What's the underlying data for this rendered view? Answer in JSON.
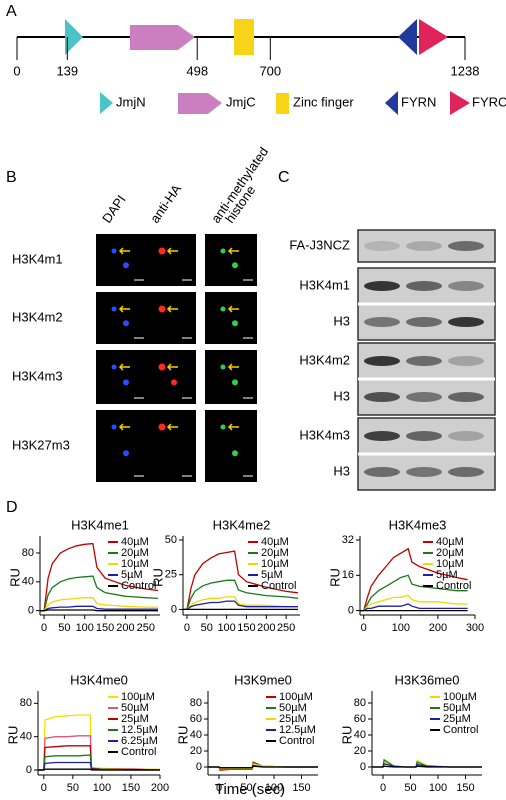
{
  "panel_a": {
    "label": "A",
    "positions": [
      0,
      139,
      498,
      700,
      1238
    ],
    "legend": [
      "JmjN",
      "JmjC",
      "Zinc finger",
      "FYRN",
      "FYRC"
    ]
  },
  "panel_b": {
    "label": "B",
    "columns": [
      [
        "DAPI"
      ],
      [
        "anti-HA"
      ],
      [
        "anti-methylated",
        "histone"
      ]
    ],
    "rows": [
      "H3K4m1",
      "H3K4m2",
      "H3K4m3",
      "H3K27m3"
    ]
  },
  "panel_c": {
    "label": "C",
    "blots": [
      "FA-J3NCZ",
      "H3K4m1",
      "H3",
      "H3K4m2",
      "H3",
      "H3K4m3",
      "H3"
    ]
  },
  "panel_d": {
    "label": "D",
    "x_label": "Time (sec)"
  },
  "chart_data": [
    {
      "type": "line",
      "title": "H3K4me1",
      "y_label": "RU",
      "xlim": [
        -10,
        285
      ],
      "xticks": [
        0,
        50,
        100,
        150,
        200,
        250
      ],
      "ylim": [
        -6,
        98
      ],
      "yticks": [
        0,
        40,
        80
      ],
      "x": [
        -10,
        0,
        10,
        20,
        40,
        60,
        80,
        100,
        120,
        130,
        150,
        200,
        250,
        280
      ],
      "series": [
        {
          "name": "40µM",
          "color": "#c00000",
          "values": [
            0,
            0,
            45,
            65,
            80,
            86,
            90,
            92,
            93,
            60,
            45,
            35,
            30,
            28
          ]
        },
        {
          "name": "20µM",
          "color": "#1a7a1a",
          "values": [
            0,
            0,
            22,
            32,
            40,
            44,
            46,
            47,
            48,
            32,
            25,
            20,
            18,
            17
          ]
        },
        {
          "name": "10µM",
          "color": "#f0d800",
          "values": [
            0,
            0,
            8,
            12,
            15,
            16,
            17,
            18,
            18,
            10,
            8,
            6,
            5,
            5
          ]
        },
        {
          "name": "5µM",
          "color": "#1f1fa0",
          "values": [
            0,
            0,
            3,
            4,
            5,
            5,
            6,
            6,
            6,
            3,
            2,
            2,
            2,
            2
          ]
        },
        {
          "name": "Control",
          "color": "#000000",
          "values": [
            0,
            0,
            1,
            1,
            1,
            1,
            1,
            1,
            1,
            0,
            0,
            0,
            0,
            0
          ]
        }
      ]
    },
    {
      "type": "line",
      "title": "H3K4me2",
      "y_label": "RU",
      "xlim": [
        -10,
        285
      ],
      "xticks": [
        0,
        50,
        100,
        150,
        200,
        250
      ],
      "ylim": [
        -4,
        50
      ],
      "yticks": [
        0,
        25,
        50
      ],
      "x": [
        -10,
        0,
        10,
        20,
        40,
        60,
        80,
        100,
        120,
        130,
        150,
        200,
        250,
        280
      ],
      "series": [
        {
          "name": "40µM",
          "color": "#c00000",
          "values": [
            0,
            0,
            15,
            25,
            33,
            37,
            40,
            41,
            42,
            25,
            20,
            16,
            13,
            12
          ]
        },
        {
          "name": "20µM",
          "color": "#1a7a1a",
          "values": [
            0,
            0,
            8,
            13,
            17,
            19,
            20,
            21,
            21,
            14,
            12,
            10,
            9,
            8
          ]
        },
        {
          "name": "10µM",
          "color": "#f0d800",
          "values": [
            0,
            0,
            3,
            5,
            7,
            8,
            8,
            9,
            9,
            4,
            3,
            3,
            2,
            2
          ]
        },
        {
          "name": "5µM",
          "color": "#1f1fa0",
          "values": [
            0,
            0,
            2,
            3,
            4,
            5,
            5,
            6,
            6,
            3,
            2,
            2,
            2,
            2
          ]
        },
        {
          "name": "Control",
          "color": "#000000",
          "values": [
            0,
            0,
            0,
            0,
            0,
            0,
            0,
            0,
            0,
            0,
            0,
            0,
            0,
            0
          ]
        }
      ]
    },
    {
      "type": "line",
      "title": "H3K4me3",
      "y_label": "RU",
      "xlim": [
        -10,
        300
      ],
      "xticks": [
        0,
        100,
        200,
        300
      ],
      "ylim": [
        -2,
        32
      ],
      "yticks": [
        0,
        16,
        32
      ],
      "x": [
        -10,
        0,
        10,
        20,
        40,
        60,
        80,
        100,
        120,
        130,
        150,
        200,
        250,
        280
      ],
      "series": [
        {
          "name": "40µM",
          "color": "#c00000",
          "values": [
            0,
            0,
            6,
            11,
            16,
            20,
            24,
            26,
            28,
            22,
            20,
            17,
            15,
            14
          ]
        },
        {
          "name": "20µM",
          "color": "#1a7a1a",
          "values": [
            0,
            0,
            3,
            6,
            9,
            11,
            13,
            15,
            16,
            12,
            11,
            10,
            9,
            9
          ]
        },
        {
          "name": "10µM",
          "color": "#f0d800",
          "values": [
            0,
            0,
            2,
            3,
            4,
            5,
            6,
            6,
            7,
            5,
            4,
            4,
            3,
            3
          ]
        },
        {
          "name": "5µM",
          "color": "#1f1fa0",
          "values": [
            0,
            0,
            1,
            1,
            2,
            2,
            2,
            2,
            3,
            2,
            1,
            1,
            1,
            1
          ]
        },
        {
          "name": "Control",
          "color": "#000000",
          "values": [
            0,
            0,
            0,
            0,
            0,
            0,
            0,
            0,
            0,
            0,
            0,
            0,
            0,
            0
          ]
        }
      ]
    },
    {
      "type": "line",
      "title": "H3K4me0",
      "y_label": "RU",
      "xlim": [
        -10,
        200
      ],
      "xticks": [
        0,
        50,
        100,
        150,
        200
      ],
      "ylim": [
        -6,
        90
      ],
      "yticks": [
        0,
        40,
        80
      ],
      "x": [
        -10,
        0,
        2,
        20,
        40,
        60,
        80,
        82,
        100,
        150,
        200
      ],
      "series": [
        {
          "name": "100µM",
          "color": "#f5e000",
          "values": [
            0,
            0,
            60,
            64,
            65,
            66,
            66,
            3,
            2,
            1,
            1
          ]
        },
        {
          "name": "50µM",
          "color": "#e0557a",
          "values": [
            0,
            0,
            38,
            40,
            40,
            41,
            41,
            2,
            1,
            1,
            0
          ]
        },
        {
          "name": "25µM",
          "color": "#c00000",
          "values": [
            0,
            0,
            27,
            28,
            29,
            29,
            29,
            2,
            1,
            1,
            0
          ]
        },
        {
          "name": "12.5µM",
          "color": "#1a7a1a",
          "values": [
            0,
            0,
            16,
            17,
            17,
            17,
            18,
            1,
            1,
            0,
            0
          ]
        },
        {
          "name": "6.25µM",
          "color": "#1f1fa0",
          "values": [
            0,
            0,
            8,
            9,
            9,
            9,
            9,
            1,
            0,
            0,
            0
          ]
        },
        {
          "name": "Control",
          "color": "#000000",
          "values": [
            0,
            0,
            1,
            1,
            1,
            1,
            1,
            0,
            0,
            0,
            0
          ]
        }
      ]
    },
    {
      "type": "line",
      "title": "H3K9me0",
      "y_label": "RU",
      "xlim": [
        -20,
        180
      ],
      "xticks": [
        0,
        50,
        100,
        150
      ],
      "ylim": [
        -10,
        90
      ],
      "yticks": [
        0,
        20,
        40,
        60,
        80
      ],
      "x": [
        -20,
        0,
        2,
        20,
        40,
        60,
        62,
        80,
        120,
        180
      ],
      "series": [
        {
          "name": "100µM",
          "color": "#c00000",
          "values": [
            0,
            0,
            -4,
            -3,
            -3,
            -3,
            6,
            1,
            0,
            0
          ]
        },
        {
          "name": "50µM",
          "color": "#1a7a1a",
          "values": [
            0,
            0,
            -3,
            -2,
            -2,
            -2,
            5,
            1,
            0,
            0
          ]
        },
        {
          "name": "25µM",
          "color": "#f0d800",
          "values": [
            0,
            0,
            -2,
            -2,
            -2,
            -2,
            4,
            1,
            0,
            0
          ]
        },
        {
          "name": "12.5µM",
          "color": "#1f1fa0",
          "values": [
            0,
            0,
            -1,
            -1,
            -1,
            -1,
            2,
            0,
            0,
            0
          ]
        },
        {
          "name": "Control",
          "color": "#000000",
          "values": [
            0,
            0,
            -1,
            -1,
            -1,
            -1,
            1,
            0,
            0,
            0
          ]
        }
      ]
    },
    {
      "type": "line",
      "title": "H3K36me0",
      "y_label": "RU",
      "xlim": [
        -20,
        180
      ],
      "xticks": [
        0,
        50,
        100,
        150
      ],
      "ylim": [
        -10,
        90
      ],
      "yticks": [
        0,
        20,
        40,
        60,
        80
      ],
      "x": [
        -20,
        0,
        2,
        20,
        40,
        60,
        62,
        80,
        120,
        180
      ],
      "series": [
        {
          "name": "100µM",
          "color": "#f0d800",
          "values": [
            0,
            0,
            7,
            1,
            0,
            0,
            8,
            2,
            0,
            0
          ]
        },
        {
          "name": "50µM",
          "color": "#1a7a1a",
          "values": [
            0,
            0,
            9,
            1,
            0,
            0,
            6,
            1,
            0,
            0
          ]
        },
        {
          "name": "25µM",
          "color": "#1f1fa0",
          "values": [
            0,
            0,
            4,
            1,
            0,
            0,
            3,
            1,
            0,
            0
          ]
        },
        {
          "name": "Control",
          "color": "#000000",
          "values": [
            0,
            0,
            1,
            0,
            0,
            0,
            1,
            0,
            0,
            0
          ]
        }
      ]
    }
  ]
}
